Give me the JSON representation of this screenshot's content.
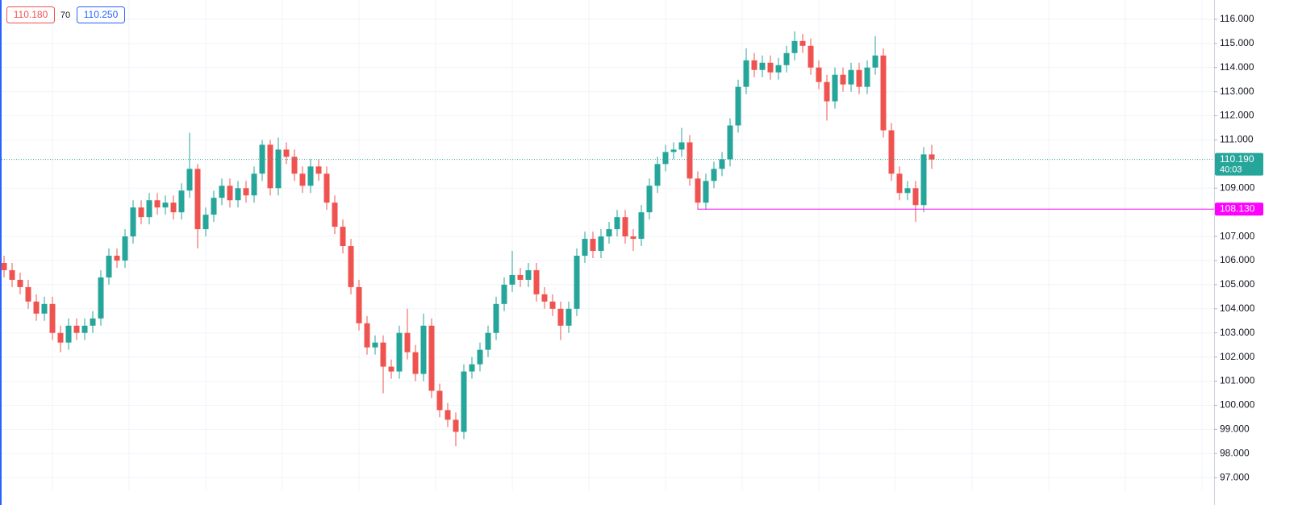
{
  "header": {
    "bid": "110.180",
    "spread": "70",
    "ask": "110.250"
  },
  "chart_data": {
    "type": "candlestick",
    "open": [
      105.9,
      105.6,
      105.2,
      104.9,
      104.3,
      103.8,
      104.2,
      103.0,
      102.6,
      103.3,
      103.0,
      103.3,
      103.6,
      105.3,
      106.2,
      106.0,
      107.0,
      108.2,
      107.8,
      108.5,
      108.2,
      108.4,
      108.0,
      108.9,
      109.8,
      107.3,
      107.9,
      108.6,
      109.1,
      108.5,
      109.0,
      108.7,
      109.6,
      110.8,
      109.0,
      110.6,
      110.3,
      109.6,
      109.1,
      109.9,
      109.6,
      108.4,
      107.4,
      106.6,
      104.9,
      103.4,
      102.4,
      102.6,
      101.6,
      101.4,
      103.0,
      102.2,
      101.3,
      103.3,
      100.6,
      99.8,
      99.4,
      98.9,
      101.4,
      101.7,
      102.3,
      103.0,
      104.2,
      105.0,
      105.4,
      105.2,
      105.6,
      104.6,
      104.3,
      104.0,
      103.3,
      104.0,
      106.2,
      106.9,
      106.4,
      107.0,
      107.3,
      107.8,
      107.0,
      106.9,
      108.0,
      109.1,
      110.0,
      110.5,
      110.6,
      110.9,
      109.4,
      108.4,
      109.3,
      109.8,
      110.2,
      111.6,
      113.2,
      114.3,
      113.9,
      114.2,
      113.8,
      114.1,
      114.6,
      115.1,
      114.9,
      114.0,
      113.4,
      112.6,
      113.7,
      113.3,
      113.9,
      113.2,
      114.0,
      114.5,
      111.4,
      109.6,
      108.8,
      109.0,
      108.3,
      110.4
    ],
    "high": [
      106.2,
      105.9,
      105.5,
      105.2,
      104.6,
      104.5,
      104.5,
      103.3,
      103.6,
      103.6,
      103.6,
      103.9,
      105.6,
      106.5,
      106.5,
      107.3,
      108.5,
      108.5,
      108.8,
      108.8,
      108.7,
      108.7,
      109.2,
      111.3,
      110.0,
      108.2,
      108.9,
      109.4,
      109.4,
      109.3,
      109.3,
      109.9,
      111.0,
      111.0,
      111.1,
      110.9,
      110.6,
      109.9,
      110.2,
      110.2,
      109.9,
      108.7,
      107.7,
      106.9,
      105.2,
      103.7,
      102.9,
      102.9,
      101.9,
      103.3,
      104.0,
      102.5,
      103.8,
      103.6,
      100.9,
      100.1,
      99.7,
      101.7,
      102.0,
      102.6,
      103.3,
      104.5,
      105.3,
      106.4,
      105.7,
      105.9,
      105.9,
      104.9,
      104.6,
      104.3,
      104.3,
      106.5,
      107.2,
      107.2,
      107.3,
      107.6,
      108.1,
      108.1,
      107.3,
      108.3,
      109.4,
      110.3,
      110.8,
      110.9,
      111.5,
      111.2,
      109.7,
      109.6,
      110.1,
      110.5,
      111.9,
      113.5,
      114.8,
      114.6,
      114.5,
      114.5,
      114.4,
      114.9,
      115.5,
      115.4,
      115.2,
      114.3,
      113.7,
      114.0,
      114.0,
      114.2,
      114.2,
      114.3,
      115.3,
      114.8,
      111.7,
      109.9,
      109.3,
      109.3,
      110.7,
      110.8
    ],
    "low": [
      105.3,
      104.9,
      104.6,
      104.0,
      103.5,
      103.5,
      102.7,
      102.2,
      102.3,
      102.7,
      102.7,
      103.0,
      103.3,
      105.0,
      105.7,
      105.7,
      106.7,
      107.5,
      107.5,
      107.9,
      107.9,
      107.7,
      107.7,
      108.6,
      106.5,
      107.0,
      107.6,
      108.3,
      108.2,
      108.2,
      108.4,
      108.4,
      109.3,
      108.7,
      108.7,
      110.0,
      109.3,
      108.8,
      108.8,
      109.3,
      108.1,
      107.1,
      106.3,
      104.6,
      103.1,
      102.1,
      102.1,
      100.5,
      101.1,
      101.1,
      101.9,
      101.0,
      101.0,
      100.3,
      99.5,
      99.1,
      98.3,
      98.6,
      101.1,
      101.4,
      102.0,
      102.7,
      103.9,
      104.7,
      104.9,
      104.9,
      104.3,
      104.0,
      103.7,
      102.7,
      103.0,
      103.7,
      105.9,
      106.1,
      106.1,
      106.7,
      107.0,
      106.7,
      106.4,
      106.6,
      107.7,
      108.8,
      109.7,
      110.2,
      110.3,
      109.1,
      108.1,
      108.1,
      109.0,
      109.5,
      109.9,
      111.3,
      112.9,
      113.6,
      113.6,
      113.5,
      113.5,
      113.8,
      114.3,
      114.6,
      113.7,
      113.1,
      111.8,
      112.3,
      113.0,
      113.0,
      112.9,
      112.9,
      113.7,
      111.1,
      109.3,
      108.5,
      108.5,
      107.6,
      108.0,
      109.8
    ],
    "close": [
      105.6,
      105.2,
      104.9,
      104.3,
      103.8,
      104.2,
      103.0,
      102.6,
      103.3,
      103.0,
      103.3,
      103.6,
      105.3,
      106.2,
      106.0,
      107.0,
      108.2,
      107.8,
      108.5,
      108.2,
      108.4,
      108.0,
      108.9,
      109.8,
      107.3,
      107.9,
      108.6,
      109.1,
      108.5,
      109.0,
      108.7,
      109.6,
      110.8,
      109.0,
      110.6,
      110.3,
      109.6,
      109.1,
      109.9,
      109.6,
      108.4,
      107.4,
      106.6,
      104.9,
      103.4,
      102.4,
      102.6,
      101.6,
      101.4,
      103.0,
      102.2,
      101.3,
      103.3,
      100.6,
      99.8,
      99.4,
      98.9,
      101.4,
      101.7,
      102.3,
      103.0,
      104.2,
      105.0,
      105.4,
      105.2,
      105.6,
      104.6,
      104.3,
      104.0,
      103.3,
      104.0,
      106.2,
      106.9,
      106.4,
      107.0,
      107.3,
      107.8,
      107.0,
      106.9,
      108.0,
      109.1,
      110.0,
      110.5,
      110.6,
      110.9,
      109.4,
      108.4,
      109.3,
      109.8,
      110.2,
      111.6,
      113.2,
      114.3,
      113.9,
      114.2,
      113.8,
      114.1,
      114.6,
      115.1,
      114.9,
      114.0,
      113.4,
      112.6,
      113.7,
      113.3,
      113.9,
      113.2,
      114.0,
      114.5,
      111.4,
      109.6,
      108.8,
      109.0,
      108.3,
      110.4,
      110.19
    ],
    "up_color": "#26a69a",
    "down_color": "#ef5350",
    "ylim": [
      96.47,
      116.8
    ],
    "yticks": [
      {
        "value": 97,
        "label": "97.000"
      },
      {
        "value": 98,
        "label": "98.000"
      },
      {
        "value": 99,
        "label": "99.000"
      },
      {
        "value": 100,
        "label": "100.000"
      },
      {
        "value": 101,
        "label": "101.000"
      },
      {
        "value": 102,
        "label": "102.000"
      },
      {
        "value": 103,
        "label": "103.000"
      },
      {
        "value": 104,
        "label": "104.000"
      },
      {
        "value": 105,
        "label": "105.000"
      },
      {
        "value": 106,
        "label": "106.000"
      },
      {
        "value": 107,
        "label": "107.000"
      },
      {
        "value": 109,
        "label": "109.000"
      },
      {
        "value": 111,
        "label": "111.000"
      },
      {
        "value": 112,
        "label": "112.000"
      },
      {
        "value": 113,
        "label": "113.000"
      },
      {
        "value": 114,
        "label": "114.000"
      },
      {
        "value": 115,
        "label": "115.000"
      },
      {
        "value": 116,
        "label": "116.000"
      }
    ],
    "grid": true,
    "last_price": {
      "value": 110.19,
      "label": "110.190",
      "countdown": "40:03"
    },
    "horizontal_line": {
      "value": 108.13,
      "label": "108.130",
      "color": "#ff00ff"
    }
  }
}
